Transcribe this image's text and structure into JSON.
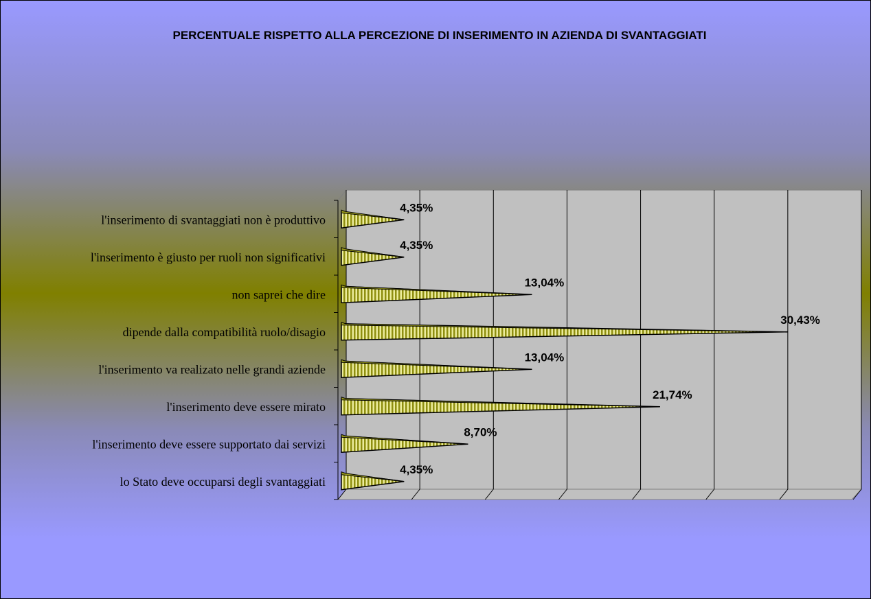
{
  "chart_data": {
    "type": "cone_bar",
    "title": "PERCENTUALE RISPETTO ALLA PERCEZIONE DI INSERIMENTO IN AZIENDA DI SVANTAGGIATI",
    "categories": [
      "l'inserimento di svantaggiati non è produttivo",
      "l'inserimento è giusto per ruoli non significativi",
      "non saprei che dire",
      "dipende dalla compatibilità ruolo/disagio",
      "l'inserimento va realizato nelle grandi aziende",
      "l'inserimento deve essere mirato",
      "l'inserimento deve essere supportato dai servizi",
      "lo Stato deve occuparsi degli svantaggiati"
    ],
    "values": [
      4.35,
      4.35,
      13.04,
      30.43,
      13.04,
      21.74,
      8.7,
      4.35
    ],
    "value_labels": [
      "4,35%",
      "4,35%",
      "13,04%",
      "30,43%",
      "13,04%",
      "21,74%",
      "8,70%",
      "4,35%"
    ],
    "color": "#9c9c1c",
    "xlim": [
      0,
      35
    ],
    "xticks": [
      0,
      5,
      10,
      15,
      20,
      25,
      30,
      35
    ],
    "grid": true
  }
}
